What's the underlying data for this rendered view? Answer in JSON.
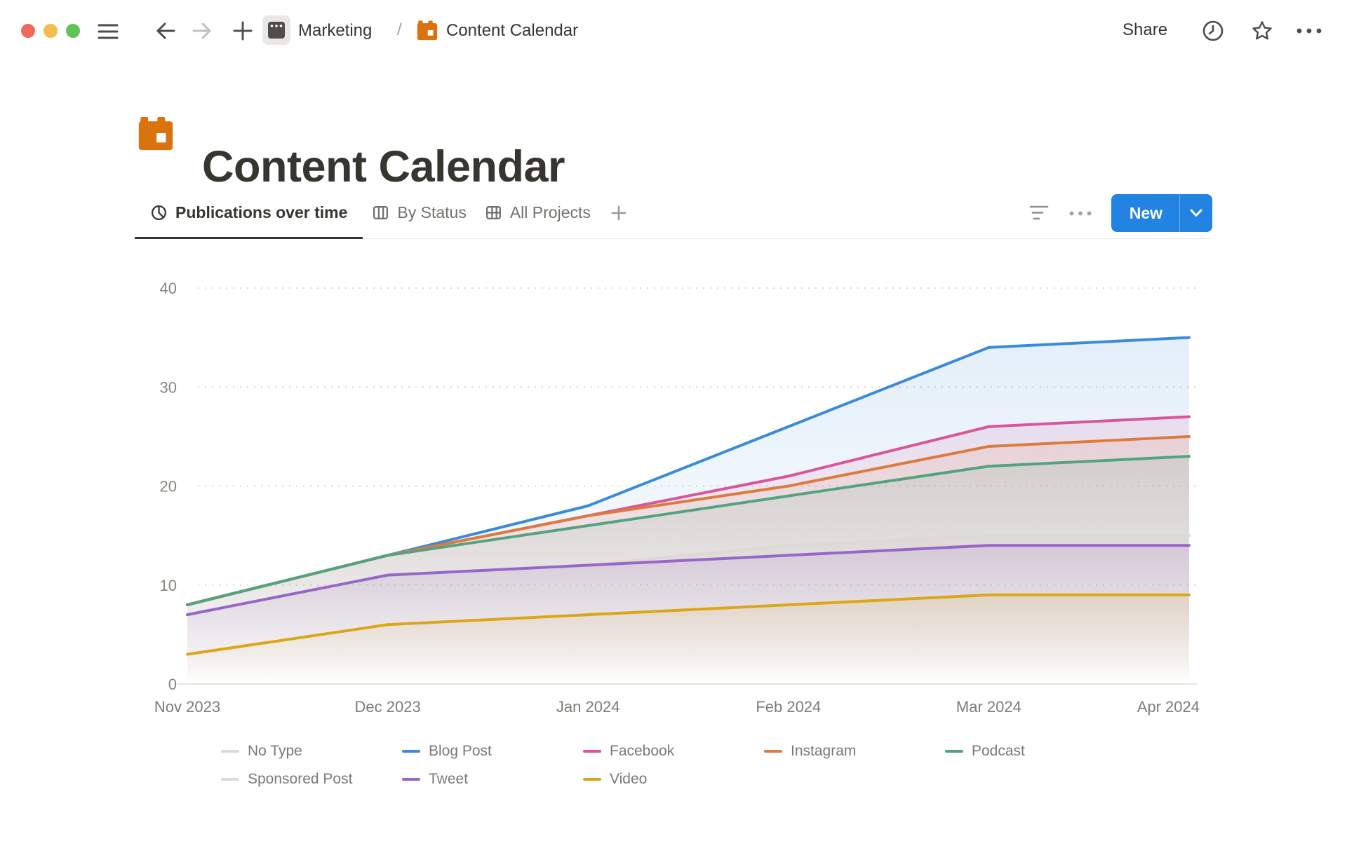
{
  "window": {
    "breadcrumb": {
      "workspace": "Marketing",
      "separator": "/",
      "page": "Content Calendar"
    },
    "actions": {
      "share_label": "Share"
    },
    "icons": {
      "traffic_lights": [
        "close-red",
        "minimize-yellow",
        "zoom-green"
      ],
      "left": [
        "hamburger-menu",
        "arrow-back",
        "arrow-forward-disabled",
        "plus-new-page"
      ],
      "right": [
        "history-clock",
        "favorite-star",
        "more-ellipsis"
      ]
    },
    "colors": {
      "accent_blue": "#2383E2",
      "calendar_orange": "#D9730D"
    }
  },
  "page": {
    "title": "Content Calendar"
  },
  "view_tabs": {
    "tabs": [
      {
        "label": "Publications over time",
        "icon": "pie-chart-icon",
        "active": true
      },
      {
        "label": "By Status",
        "icon": "board-columns-icon",
        "active": false
      },
      {
        "label": "All Projects",
        "icon": "table-icon",
        "active": false
      }
    ],
    "controls": {
      "filter_icon": "filter-lines",
      "more_icon": "ellipsis",
      "new_button_label": "New"
    }
  },
  "chart_data": {
    "type": "area",
    "title": "Publications over time",
    "x": [
      "Nov 2023",
      "Dec 2023",
      "Jan 2024",
      "Feb 2024",
      "Mar 2024",
      "Apr 2024"
    ],
    "y_ticks": [
      0,
      10,
      20,
      30,
      40
    ],
    "ylim": [
      0,
      40
    ],
    "grid": "horizontal-dotted",
    "legend_position": "bottom",
    "series": [
      {
        "name": "No Type",
        "color": "#DCDAD5",
        "values": [
          7,
          11,
          12,
          14,
          15,
          15
        ]
      },
      {
        "name": "Blog Post",
        "color": "#3A8BDA",
        "values": [
          8,
          13,
          18,
          26,
          34,
          35
        ]
      },
      {
        "name": "Facebook",
        "color": "#D85799",
        "values": [
          8,
          13,
          17,
          21,
          26,
          27
        ]
      },
      {
        "name": "Instagram",
        "color": "#DD7B3F",
        "values": [
          8,
          13,
          17,
          20,
          24,
          25
        ]
      },
      {
        "name": "Podcast",
        "color": "#53A47E",
        "values": [
          8,
          13,
          16,
          19,
          22,
          23
        ]
      },
      {
        "name": "Sponsored Post",
        "color": "#DCDAD5",
        "values": [
          7,
          11,
          12,
          14,
          15,
          15
        ]
      },
      {
        "name": "Tweet",
        "color": "#9667C9",
        "values": [
          7,
          11,
          12,
          13,
          14,
          14
        ]
      },
      {
        "name": "Video",
        "color": "#DBA617",
        "values": [
          3,
          6,
          7,
          8,
          9,
          9
        ]
      }
    ]
  }
}
